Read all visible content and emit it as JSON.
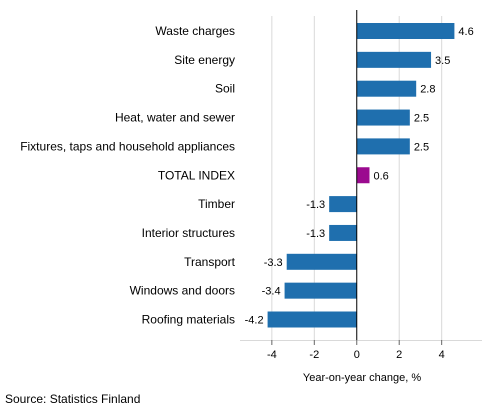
{
  "chart_data": {
    "type": "bar",
    "orientation": "horizontal",
    "categories": [
      "Waste charges",
      "Site energy",
      "Soil",
      "Heat, water and sewer",
      "Fixtures, taps and household appliances",
      "TOTAL INDEX",
      "Timber",
      "Interior structures",
      "Transport",
      "Windows and doors",
      "Roofing materials"
    ],
    "values": [
      4.6,
      3.5,
      2.8,
      2.5,
      2.5,
      0.6,
      -1.3,
      -1.3,
      -3.3,
      -3.4,
      -4.2
    ],
    "value_labels": [
      "4.6",
      "3.5",
      "2.8",
      "2.5",
      "2.5",
      "0.6",
      "-1.3",
      "-1.3",
      "-3.3",
      "-3.4",
      "-4.2"
    ],
    "highlight_category": "TOTAL INDEX",
    "xlabel": "Year-on-year change, %",
    "ylabel": "",
    "xlim": [
      -5.5,
      5.9
    ],
    "xticks": [
      -4,
      -2,
      0,
      2,
      4
    ],
    "xtick_labels": [
      "-4",
      "-2",
      "0",
      "2",
      "4"
    ],
    "grid": true,
    "legend": "none",
    "colors": {
      "bar": "#1f6fae",
      "highlight": "#9b0a8f",
      "grid": "#d9d9d9",
      "zero_line": "#000000"
    }
  },
  "source": "Source: Statistics Finland"
}
